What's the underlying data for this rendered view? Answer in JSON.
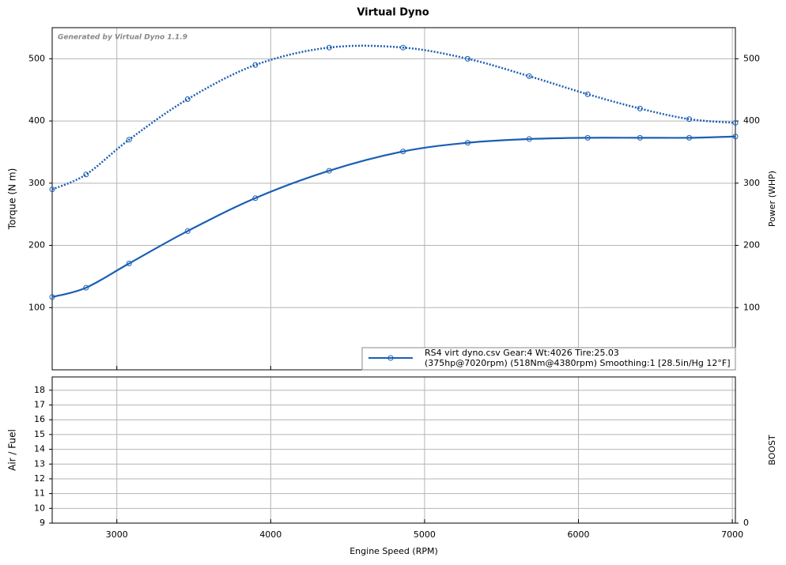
{
  "chart_data": [
    {
      "type": "line",
      "title": "Virtual Dyno",
      "annotation": "Generated by Virtual Dyno 1.1.9",
      "ylabel": "Torque (N m)",
      "y2label": "Power (WHP)",
      "legend": [
        "RS4 virt dyno.csv Gear:4 Wt:4026 Tire:25.03",
        "(375hp@7020rpm) (518Nm@4380rpm) Smoothing:1 [28.5in/Hg 12°F]"
      ],
      "xlim": [
        2580,
        7020
      ],
      "xticks": [
        3000,
        4000,
        5000,
        6000,
        7000
      ],
      "ylim": [
        0,
        550
      ],
      "yticks": [
        100,
        200,
        300,
        400,
        500
      ],
      "y2lim": [
        0,
        550
      ],
      "y2ticks": [
        100,
        200,
        300,
        400,
        500
      ],
      "grid": true,
      "series": [
        {
          "color": "#1a5fb4",
          "style": "dotted",
          "axis": "y",
          "x": [
            2580,
            2800,
            3080,
            3460,
            3900,
            4380,
            4860,
            5280,
            5680,
            6060,
            6400,
            6720,
            7020
          ],
          "values": [
            290,
            314,
            370,
            435,
            490,
            518,
            518,
            500,
            472,
            443,
            420,
            403,
            397
          ]
        },
        {
          "color": "#1a5fb4",
          "style": "solid",
          "axis": "y2",
          "x": [
            2580,
            2800,
            3080,
            3460,
            3900,
            4380,
            4860,
            5280,
            5680,
            6060,
            6400,
            6720,
            7020
          ],
          "values": [
            117,
            132,
            171,
            223,
            276,
            320,
            351,
            365,
            371,
            373,
            373,
            373,
            375
          ]
        }
      ]
    },
    {
      "type": "line",
      "ylabel": "Air / Fuel",
      "y2label": "BOOST",
      "xlabel": "Engine Speed (RPM)",
      "xlim": [
        2580,
        7020
      ],
      "xticks": [
        3000,
        4000,
        5000,
        6000,
        7000
      ],
      "ylim": [
        9,
        18.9
      ],
      "yticks": [
        9,
        10,
        11,
        12,
        13,
        14,
        15,
        16,
        17,
        18
      ],
      "y2lim": [
        0,
        1
      ],
      "y2ticks": [
        0
      ],
      "grid": true,
      "series": []
    }
  ]
}
